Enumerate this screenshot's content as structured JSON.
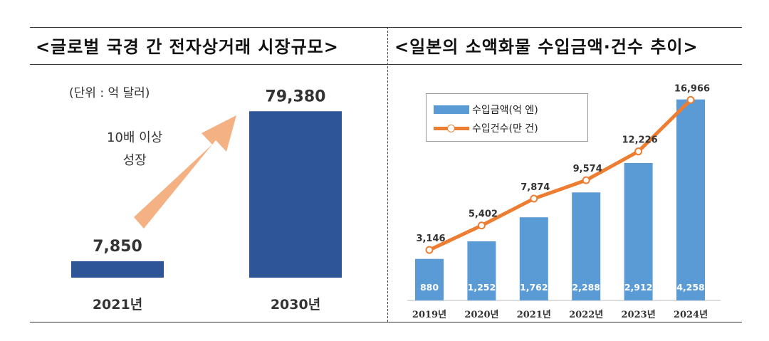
{
  "left_panel": {
    "title": "<글로벌 국경 간 전자상거래 시장규모>",
    "unit_label": "(단위 : 억 달러)",
    "growth_line1": "10배 이상",
    "growth_line2": "성장"
  },
  "right_panel": {
    "title": "<일본의 소액화물 수입금액·건수 추이>"
  },
  "colors": {
    "dark_bar": "#2e5597",
    "light_bar": "#5b9bd5",
    "line": "#ed7d31",
    "arrow": "#f4b183"
  },
  "chart_data": [
    {
      "type": "bar",
      "title": "<글로벌 국경 간 전자상거래 시장규모>",
      "unit": "(단위 : 억 달러)",
      "categories": [
        "2021년",
        "2030년"
      ],
      "values": [
        7850,
        79380
      ],
      "value_labels": [
        "7,850",
        "79,380"
      ],
      "ylim": [
        0,
        90000
      ],
      "annotation": "10배 이상 성장"
    },
    {
      "type": "bar+line",
      "title": "<일본의 소액화물 수입금액·건수 추이>",
      "categories": [
        "2019년",
        "2020년",
        "2021년",
        "2022년",
        "2023년",
        "2024년"
      ],
      "series": [
        {
          "name": "수입금액(억 엔)",
          "type": "bar",
          "values": [
            880,
            1252,
            1762,
            2288,
            2912,
            4258
          ],
          "labels": [
            "880",
            "1,252",
            "1,762",
            "2,288",
            "2,912",
            "4,258"
          ],
          "ylim": [
            0,
            4600
          ]
        },
        {
          "name": "수입건수(만 건)",
          "type": "line",
          "values": [
            3146,
            5402,
            7874,
            9574,
            12226,
            16966
          ],
          "labels": [
            "3,146",
            "5,402",
            "7,874",
            "9,574",
            "12,226",
            "16,966"
          ],
          "ylim": [
            -1500,
            18500
          ]
        }
      ]
    }
  ]
}
